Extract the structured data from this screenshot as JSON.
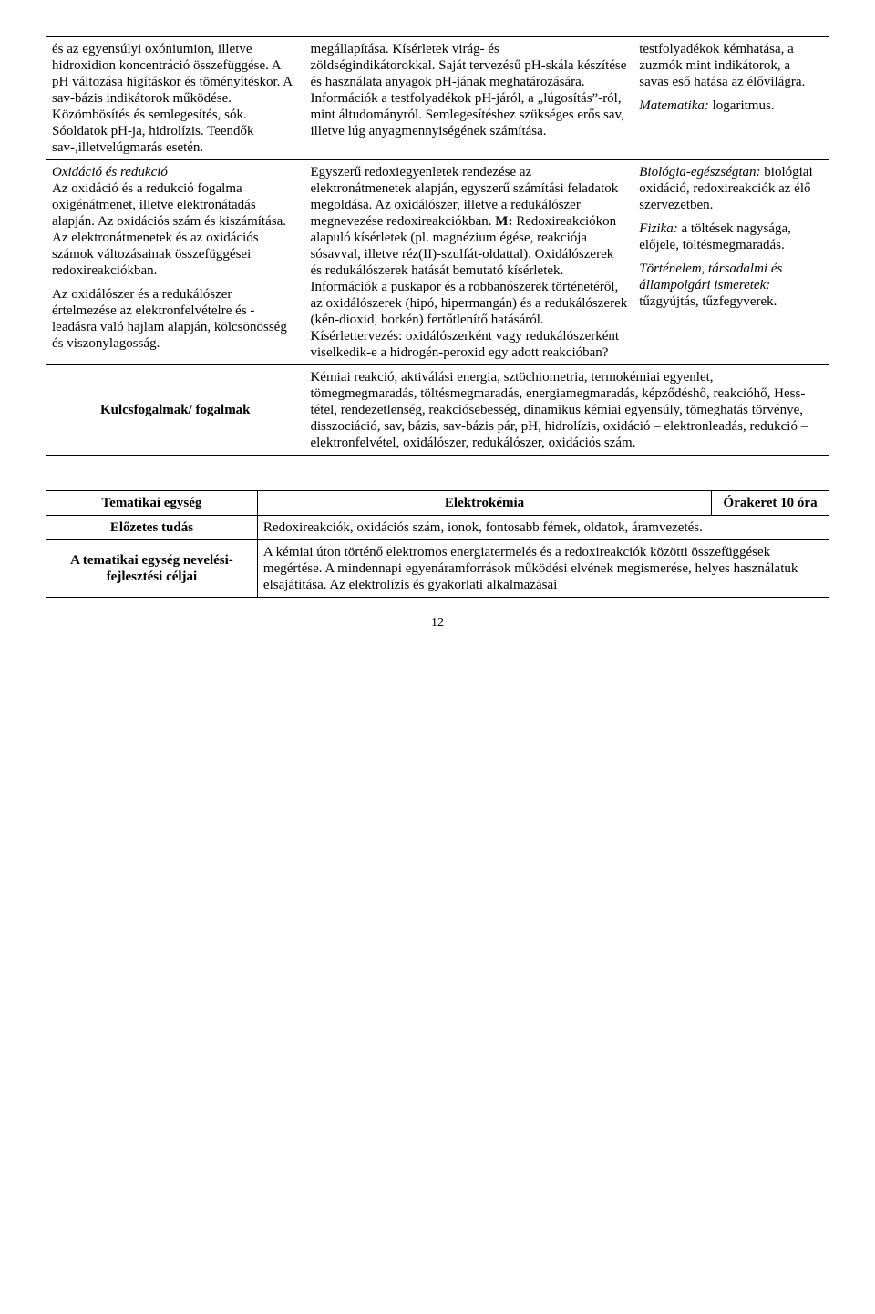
{
  "table1": {
    "r1c1": "és az egyensúlyi oxóniumion, illetve hidroxidion koncentráció összefüggése. A pH változása hígításkor és töményítéskor. A sav-bázis indikátorok működése. Közömbösítés és semlegesítés, sók. Sóoldatok pH-ja, hidrolízis. Teendők sav-,illetvelúgmarás esetén.",
    "r1c2": "megállapítása. Kísérletek virág- és zöldségindikátorokkal. Saját tervezésű pH-skála készítése és használata anyagok pH-jának meghatározására. Információk a testfolyadékok pH-járól, a „lúgosítás”-ról, mint áltudományról. Semlegesítéshez szükséges erős sav, illetve lúg anyagmennyiségének számítása.",
    "r1c3a": "testfolyadékok kémhatása, a zuzmók mint indikátorok, a savas eső hatása az élővilágra.",
    "r1c3b_label": "Matematika:",
    "r1c3b_text": " logaritmus.",
    "r2c1a_label": "Oxidáció és redukció",
    "r2c1a_text": "Az oxidáció és a redukció fogalma oxigénátmenet, illetve elektronátadás alapján. Az oxidációs szám és kiszámítása. Az elektronátmenetek és az oxidációs számok változásainak összefüggései redoxireakciókban.",
    "r2c1b": "Az oxidálószer és a redukálószer értelmezése az elektronfelvételre és -leadásra való hajlam alapján, kölcsönösség és viszonylagosság.",
    "r2c2a": "Egyszerű redoxiegyenletek rendezése az elektronátmenetek alapján, egyszerű számítási feladatok megoldása. Az oxidálószer, illetve a redukálószer megnevezése redoxireakciókban. ",
    "r2c2b_label": "M:",
    "r2c2b_text": " Redoxireakciókon alapuló kísérletek (pl. magnézium égése, reakciója sósavval, illetve réz(II)-szulfát-oldattal). Oxidálószerek és redukálószerek hatását bemutató kísérletek. Információk a puskapor és a robbanószerek történetéről, az oxidálószerek (hipó, hipermangán) és a redukálószerek (kén-dioxid, borkén) fertőtlenítő hatásáról. Kísérlettervezés: oxidálószerként vagy redukálószerként viselkedik-e a hidrogén-peroxid egy adott reakcióban?",
    "r2c3a_label": "Biológia-egészségtan:",
    "r2c3a_text": " biológiai oxidáció, redoxireakciók az élő szervezetben.",
    "r2c3b_label": "Fizika:",
    "r2c3b_text": " a töltések nagysága, előjele, töltésmegmaradás.",
    "r2c3c_label": "Történelem, társadalmi és állampolgári ismeretek:",
    "r2c3c_text": " tűzgyújtás, tűzfegyverek.",
    "kf_label": "Kulcsfogalmak/ fogalmak",
    "kf_text": "Kémiai reakció, aktiválási energia, sztöchiometria, termokémiai egyenlet, tömegmegmaradás, töltésmegmaradás, energiamegmaradás, képződéshő, reakcióhő, Hess-tétel, rendezetlenség, reakciósebesség, dinamikus kémiai egyensúly, tömeghatás törvénye, disszociáció, sav, bázis, sav-bázis pár, pH, hidrolízis, oxidáció – elektronleadás, redukció – elektronfelvétel, oxidálószer, redukálószer, oxidációs szám."
  },
  "table2": {
    "h1": "Tematikai egység",
    "h2": "Elektrokémia",
    "h3": "Órakeret 10 óra",
    "r1_label": "Előzetes tudás",
    "r1_text": "Redoxireakciók, oxidációs szám, ionok, fontosabb fémek, oldatok, áramvezetés.",
    "r2_label": "A tematikai egység nevelési-fejlesztési céljai",
    "r2_text": "A kémiai úton történő elektromos energiatermelés és a redoxireakciók közötti összefüggések megértése. A mindennapi egyenáramforrások működési elvének megismerése, helyes használatuk elsajátítása. Az elektrolízis és gyakorlati alkalmazásai"
  },
  "page_number": "12"
}
